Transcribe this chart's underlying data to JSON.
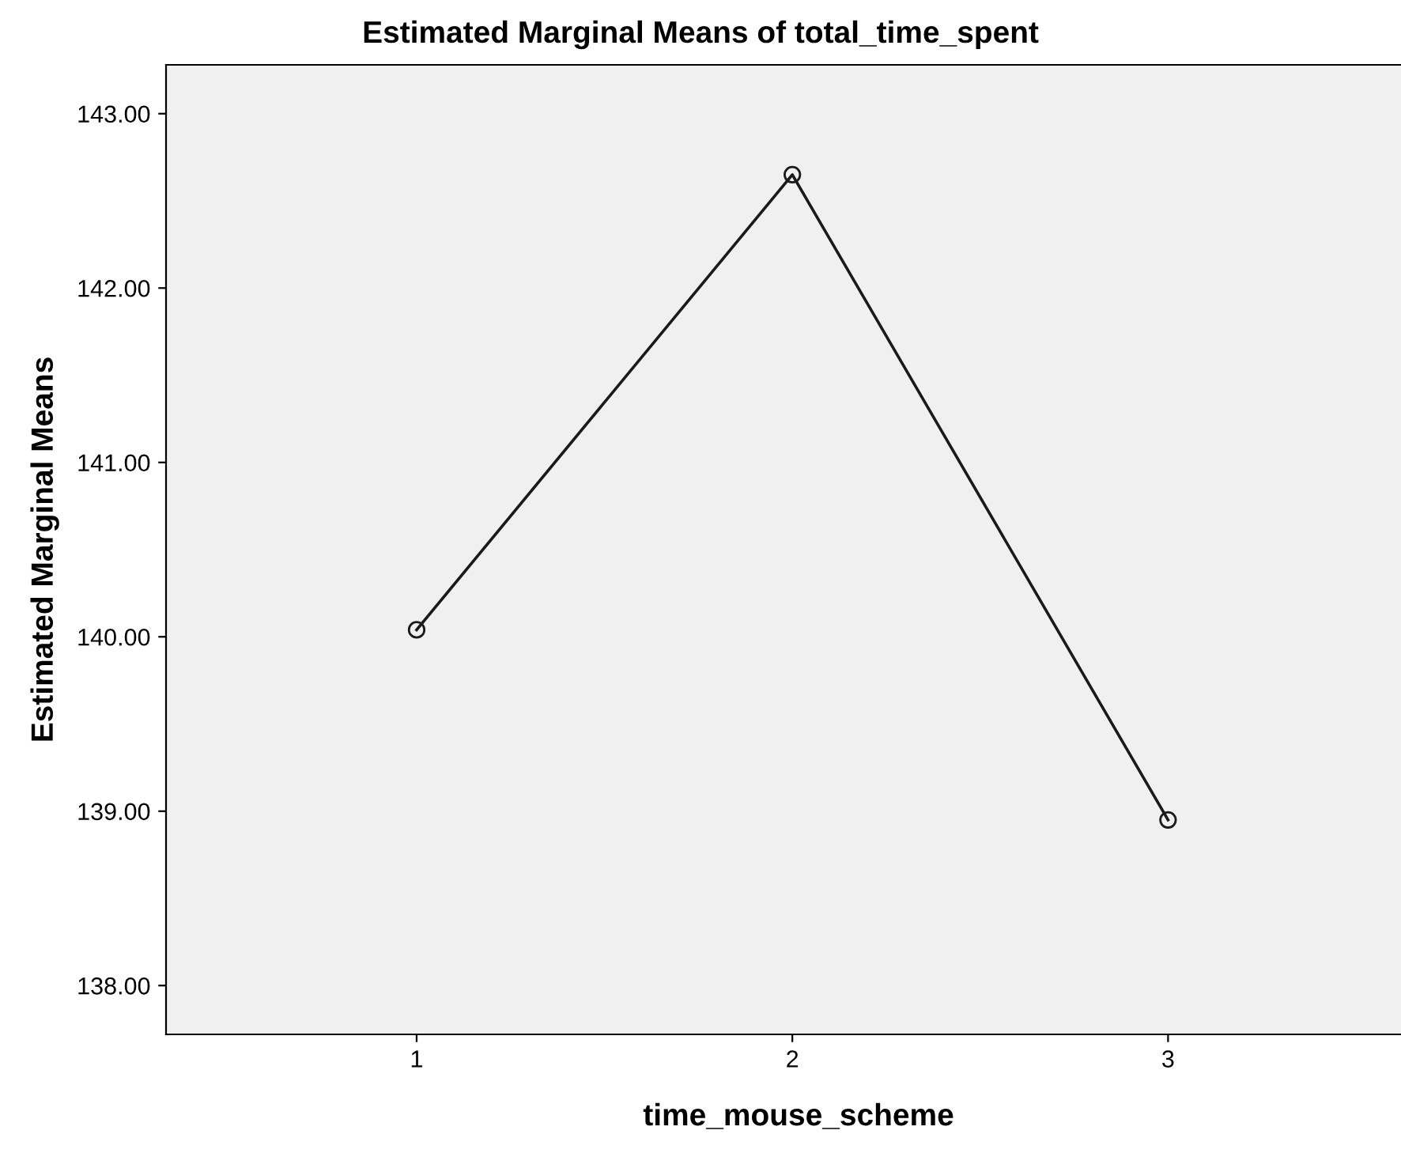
{
  "chart_data": {
    "type": "line",
    "title": "Estimated Marginal Means of total_time_spent",
    "xlabel": "time_mouse_scheme",
    "ylabel": "Estimated Marginal Means",
    "categories": [
      "1",
      "2",
      "3"
    ],
    "series": [
      {
        "color": "#1a1a1a",
        "values": [
          140.04,
          142.65,
          138.95
        ]
      }
    ],
    "ylim": [
      137.72,
      143.28
    ],
    "yticks": [
      {
        "value": 138,
        "label": "138.00"
      },
      {
        "value": 139,
        "label": "139.00"
      },
      {
        "value": 140,
        "label": "140.00"
      },
      {
        "value": 141,
        "label": "141.00"
      },
      {
        "value": 142,
        "label": "142.00"
      },
      {
        "value": 143,
        "label": "143.00"
      }
    ],
    "marker": "circle",
    "line_style": "solid"
  }
}
